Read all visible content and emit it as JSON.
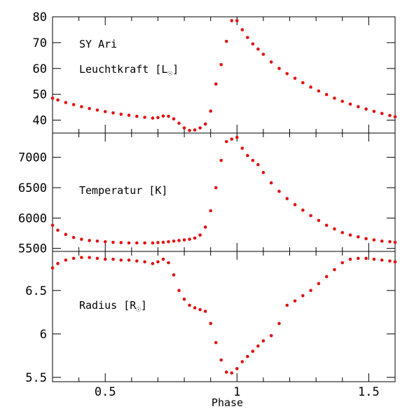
{
  "chart_data": [
    {
      "type": "scatter",
      "object_label": "SY Ari",
      "ylabel": "Leuchtkraft [L",
      "ylabel_sym": "☉",
      "ylabel_close": "]",
      "ylim": [
        35,
        80
      ],
      "yticks": [
        40,
        50,
        60,
        70,
        80
      ],
      "series": [
        {
          "color": "#e01010",
          "x": [
            0.3,
            0.32,
            0.35,
            0.38,
            0.41,
            0.44,
            0.47,
            0.5,
            0.53,
            0.56,
            0.59,
            0.62,
            0.65,
            0.68,
            0.7,
            0.72,
            0.74,
            0.76,
            0.78,
            0.8,
            0.82,
            0.84,
            0.86,
            0.88,
            0.9,
            0.92,
            0.94,
            0.96,
            0.98,
            1.0,
            1.02,
            1.04,
            1.06,
            1.08,
            1.1,
            1.13,
            1.16,
            1.19,
            1.22,
            1.25,
            1.28,
            1.31,
            1.34,
            1.37,
            1.4,
            1.43,
            1.46,
            1.49,
            1.52,
            1.55,
            1.58,
            1.6
          ],
          "y": [
            48.5,
            47.8,
            46.8,
            46,
            45.2,
            44.5,
            43.9,
            43.3,
            42.8,
            42.3,
            41.9,
            41.5,
            41.1,
            40.8,
            41,
            41.6,
            41.5,
            40.5,
            38.8,
            37,
            36,
            36.2,
            37,
            38.5,
            43.5,
            54,
            61.5,
            70.5,
            78.5,
            78.5,
            75,
            72,
            69.5,
            67.5,
            65.5,
            62.5,
            60,
            58,
            56.2,
            54.5,
            52.8,
            51.3,
            49.9,
            48.5,
            47.3,
            46.2,
            45.2,
            44.3,
            43.4,
            42.6,
            41.8,
            41.3
          ]
        }
      ]
    },
    {
      "type": "scatter",
      "ylabel": "Temperatur [K]",
      "ylim": [
        5450,
        7400
      ],
      "yticks": [
        5500,
        6000,
        6500,
        7000
      ],
      "series": [
        {
          "color": "#e01010",
          "x": [
            0.3,
            0.32,
            0.35,
            0.38,
            0.41,
            0.44,
            0.47,
            0.5,
            0.53,
            0.56,
            0.59,
            0.62,
            0.65,
            0.68,
            0.7,
            0.72,
            0.74,
            0.76,
            0.78,
            0.8,
            0.82,
            0.84,
            0.86,
            0.88,
            0.9,
            0.92,
            0.94,
            0.96,
            0.98,
            1.0,
            1.02,
            1.04,
            1.06,
            1.08,
            1.1,
            1.13,
            1.16,
            1.19,
            1.22,
            1.25,
            1.28,
            1.31,
            1.34,
            1.37,
            1.4,
            1.43,
            1.46,
            1.49,
            1.52,
            1.55,
            1.58,
            1.6
          ],
          "y": [
            5880,
            5800,
            5730,
            5680,
            5650,
            5630,
            5620,
            5610,
            5600,
            5595,
            5590,
            5590,
            5590,
            5590,
            5595,
            5600,
            5610,
            5620,
            5630,
            5640,
            5650,
            5670,
            5720,
            5850,
            6120,
            6500,
            6950,
            7260,
            7300,
            7330,
            7150,
            7030,
            6950,
            6880,
            6750,
            6580,
            6440,
            6320,
            6220,
            6130,
            6040,
            5960,
            5880,
            5820,
            5760,
            5720,
            5690,
            5660,
            5640,
            5620,
            5610,
            5600
          ]
        }
      ]
    },
    {
      "type": "scatter",
      "ylabel": "Radius [R",
      "ylabel_sym": "☉",
      "ylabel_close": "]",
      "xlabel": "Phase",
      "ylim": [
        5.45,
        6.95
      ],
      "yticks": [
        5.5,
        6,
        6.5
      ],
      "ytick_labels": [
        "5.5",
        "6",
        "6.5"
      ],
      "xlim": [
        0.3,
        1.6
      ],
      "xticks": [
        0.5,
        1,
        1.5
      ],
      "xtick_labels": [
        "0.5",
        "1",
        "1.5"
      ],
      "series": [
        {
          "color": "#e01010",
          "x": [
            0.3,
            0.32,
            0.35,
            0.38,
            0.41,
            0.44,
            0.47,
            0.5,
            0.53,
            0.56,
            0.59,
            0.62,
            0.65,
            0.68,
            0.7,
            0.72,
            0.74,
            0.76,
            0.78,
            0.8,
            0.82,
            0.84,
            0.86,
            0.88,
            0.9,
            0.92,
            0.94,
            0.96,
            0.98,
            1.0,
            1.02,
            1.04,
            1.06,
            1.08,
            1.1,
            1.13,
            1.16,
            1.19,
            1.22,
            1.25,
            1.28,
            1.31,
            1.34,
            1.37,
            1.4,
            1.43,
            1.46,
            1.49,
            1.52,
            1.55,
            1.58,
            1.6
          ],
          "y": [
            6.76,
            6.81,
            6.85,
            6.87,
            6.88,
            6.88,
            6.87,
            6.86,
            6.86,
            6.85,
            6.85,
            6.84,
            6.83,
            6.81,
            6.83,
            6.86,
            6.82,
            6.68,
            6.5,
            6.4,
            6.33,
            6.3,
            6.28,
            6.26,
            6.12,
            5.9,
            5.7,
            5.56,
            5.55,
            5.6,
            5.68,
            5.74,
            5.8,
            5.86,
            5.92,
            5.98,
            6.12,
            6.33,
            6.38,
            6.44,
            6.5,
            6.58,
            6.66,
            6.74,
            6.82,
            6.86,
            6.87,
            6.87,
            6.86,
            6.85,
            6.84,
            6.83
          ]
        }
      ]
    }
  ]
}
